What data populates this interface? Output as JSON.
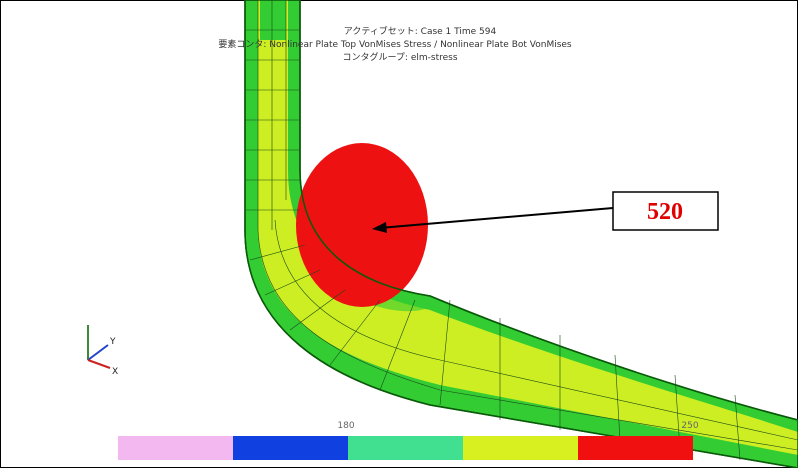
{
  "header": {
    "lines": [
      "アクティブセット: Case 1 Time 594",
      "要素コンタ: Nonlinear Plate Top VonMises Stress / Nonlinear Plate Bot VonMises",
      "コンタグループ: elm-stress"
    ]
  },
  "callout": {
    "label": "520"
  },
  "axes": {
    "y": "Y",
    "x": "X"
  },
  "legend": {
    "labels": [
      "180",
      "250"
    ]
  }
}
